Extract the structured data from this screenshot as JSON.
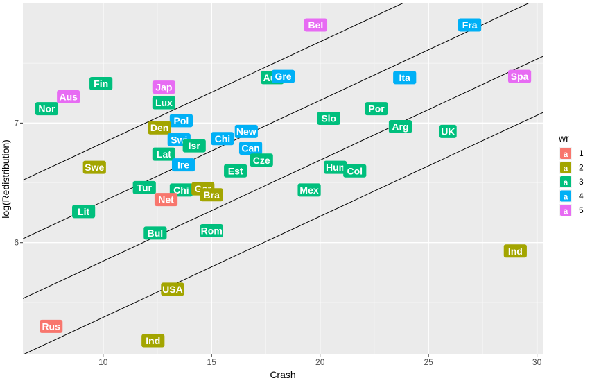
{
  "chart_data": {
    "type": "scatter",
    "xlabel": "Crash",
    "ylabel": "log(Redistribution)",
    "xlim": [
      6.3,
      30.3
    ],
    "ylim": [
      5.07,
      8.0
    ],
    "x_ticks": [
      10,
      15,
      20,
      25,
      30
    ],
    "y_ticks": [
      6,
      7
    ],
    "grid": true,
    "legend": {
      "title": "wr",
      "placement": "right",
      "key_glyph": "a",
      "entries": [
        {
          "label": "1",
          "color": "#F8766D"
        },
        {
          "label": "2",
          "color": "#A3A500"
        },
        {
          "label": "3",
          "color": "#00BF7D"
        },
        {
          "label": "4",
          "color": "#00B0F6"
        },
        {
          "label": "5",
          "color": "#E76BF3"
        }
      ]
    },
    "lines": [
      {
        "intercept": 5.99,
        "slope": 0.0845
      },
      {
        "intercept": 5.5,
        "slope": 0.0845
      },
      {
        "intercept": 5.0,
        "slope": 0.0845
      },
      {
        "intercept": 4.53,
        "slope": 0.0845
      }
    ],
    "points": [
      {
        "label": "Bel",
        "x": 19.8,
        "y": 7.82,
        "group": "5"
      },
      {
        "label": "Fra",
        "x": 26.9,
        "y": 7.82,
        "group": "4"
      },
      {
        "label": "Aus",
        "x": 17.8,
        "y": 7.38,
        "group": "3"
      },
      {
        "label": "Gre",
        "x": 18.3,
        "y": 7.39,
        "group": "4"
      },
      {
        "label": "Ita",
        "x": 23.9,
        "y": 7.38,
        "group": "4"
      },
      {
        "label": "Spa",
        "x": 29.2,
        "y": 7.39,
        "group": "5"
      },
      {
        "label": "Fin",
        "x": 9.9,
        "y": 7.33,
        "group": "3"
      },
      {
        "label": "Jap",
        "x": 12.8,
        "y": 7.3,
        "group": "5"
      },
      {
        "label": "Aus",
        "x": 8.4,
        "y": 7.22,
        "group": "5"
      },
      {
        "label": "Lux",
        "x": 12.8,
        "y": 7.17,
        "group": "3"
      },
      {
        "label": "Nor",
        "x": 7.4,
        "y": 7.12,
        "group": "3"
      },
      {
        "label": "Por",
        "x": 22.6,
        "y": 7.12,
        "group": "3"
      },
      {
        "label": "Slo",
        "x": 20.4,
        "y": 7.04,
        "group": "3"
      },
      {
        "label": "Pol",
        "x": 13.6,
        "y": 7.02,
        "group": "4"
      },
      {
        "label": "Den",
        "x": 12.6,
        "y": 6.96,
        "group": "2"
      },
      {
        "label": "Arg",
        "x": 23.7,
        "y": 6.97,
        "group": "3"
      },
      {
        "label": "UK",
        "x": 25.9,
        "y": 6.93,
        "group": "3"
      },
      {
        "label": "New",
        "x": 16.6,
        "y": 6.93,
        "group": "4"
      },
      {
        "label": "Chi",
        "x": 15.5,
        "y": 6.87,
        "group": "4"
      },
      {
        "label": "Swi",
        "x": 13.5,
        "y": 6.86,
        "group": "4"
      },
      {
        "label": "Isr",
        "x": 14.2,
        "y": 6.81,
        "group": "3"
      },
      {
        "label": "Can",
        "x": 16.8,
        "y": 6.79,
        "group": "4"
      },
      {
        "label": "Lat",
        "x": 12.8,
        "y": 6.74,
        "group": "3"
      },
      {
        "label": "Cze",
        "x": 17.3,
        "y": 6.69,
        "group": "3"
      },
      {
        "label": "Ire",
        "x": 13.7,
        "y": 6.65,
        "group": "4"
      },
      {
        "label": "Swe",
        "x": 9.6,
        "y": 6.63,
        "group": "2"
      },
      {
        "label": "Hun",
        "x": 20.7,
        "y": 6.63,
        "group": "3"
      },
      {
        "label": "Est",
        "x": 16.1,
        "y": 6.6,
        "group": "3"
      },
      {
        "label": "Col",
        "x": 21.6,
        "y": 6.6,
        "group": "3"
      },
      {
        "label": "Tur",
        "x": 11.9,
        "y": 6.46,
        "group": "3"
      },
      {
        "label": "Chi",
        "x": 13.6,
        "y": 6.44,
        "group": "3"
      },
      {
        "label": "Ger",
        "x": 14.6,
        "y": 6.45,
        "group": "2"
      },
      {
        "label": "Mex",
        "x": 19.5,
        "y": 6.44,
        "group": "3"
      },
      {
        "label": "Bra",
        "x": 15.0,
        "y": 6.4,
        "group": "2"
      },
      {
        "label": "Net",
        "x": 12.9,
        "y": 6.36,
        "group": "1"
      },
      {
        "label": "Lit",
        "x": 9.1,
        "y": 6.26,
        "group": "3"
      },
      {
        "label": "Rom",
        "x": 15.0,
        "y": 6.1,
        "group": "3"
      },
      {
        "label": "Bul",
        "x": 12.4,
        "y": 6.08,
        "group": "3"
      },
      {
        "label": "Ind",
        "x": 29.0,
        "y": 5.93,
        "group": "2"
      },
      {
        "label": "USA",
        "x": 13.2,
        "y": 5.61,
        "group": "2"
      },
      {
        "label": "Rus",
        "x": 7.6,
        "y": 5.3,
        "group": "1"
      },
      {
        "label": "Ind",
        "x": 12.3,
        "y": 5.18,
        "group": "2"
      }
    ]
  }
}
